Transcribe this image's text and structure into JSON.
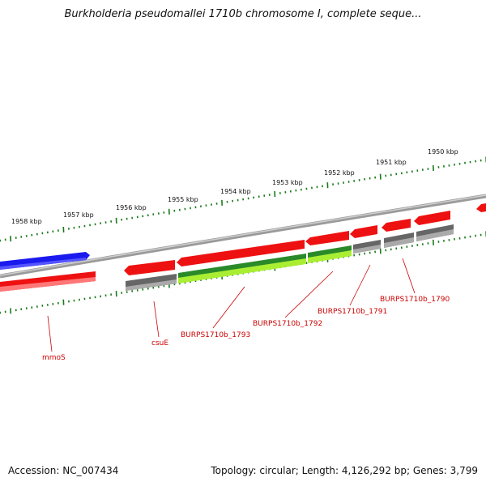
{
  "title": "Burkholderia pseudomallei 1710b chromosome I, complete seque...",
  "footer": {
    "accession": "Accession: NC_007434",
    "summary": "Topology: circular; Length: 4,126,292 bp; Genes: 3,799"
  },
  "colors": {
    "backbone": "#7a7a7a",
    "tick": "#1a7a1a",
    "label": "#cc0000",
    "gene_red": "#ee1111",
    "gene_blue": "#1111ee",
    "gene_gray": "#666666",
    "gene_darkgreen": "#2a8a2a",
    "gene_lightgreen": "#aaee33"
  },
  "ruler_labels": [
    "1958 kbp",
    "1957 kbp",
    "1956 kbp",
    "1955 kbp",
    "1954 kbp",
    "1953 kbp",
    "1952 kbp",
    "1951 kbp",
    "1950 kbp"
  ],
  "gene_labels": [
    "mmoS",
    "csuE",
    "BURPS1710b_1793",
    "BURPS1710b_1792",
    "BURPS1710b_1791",
    "BURPS1710b_1790"
  ]
}
